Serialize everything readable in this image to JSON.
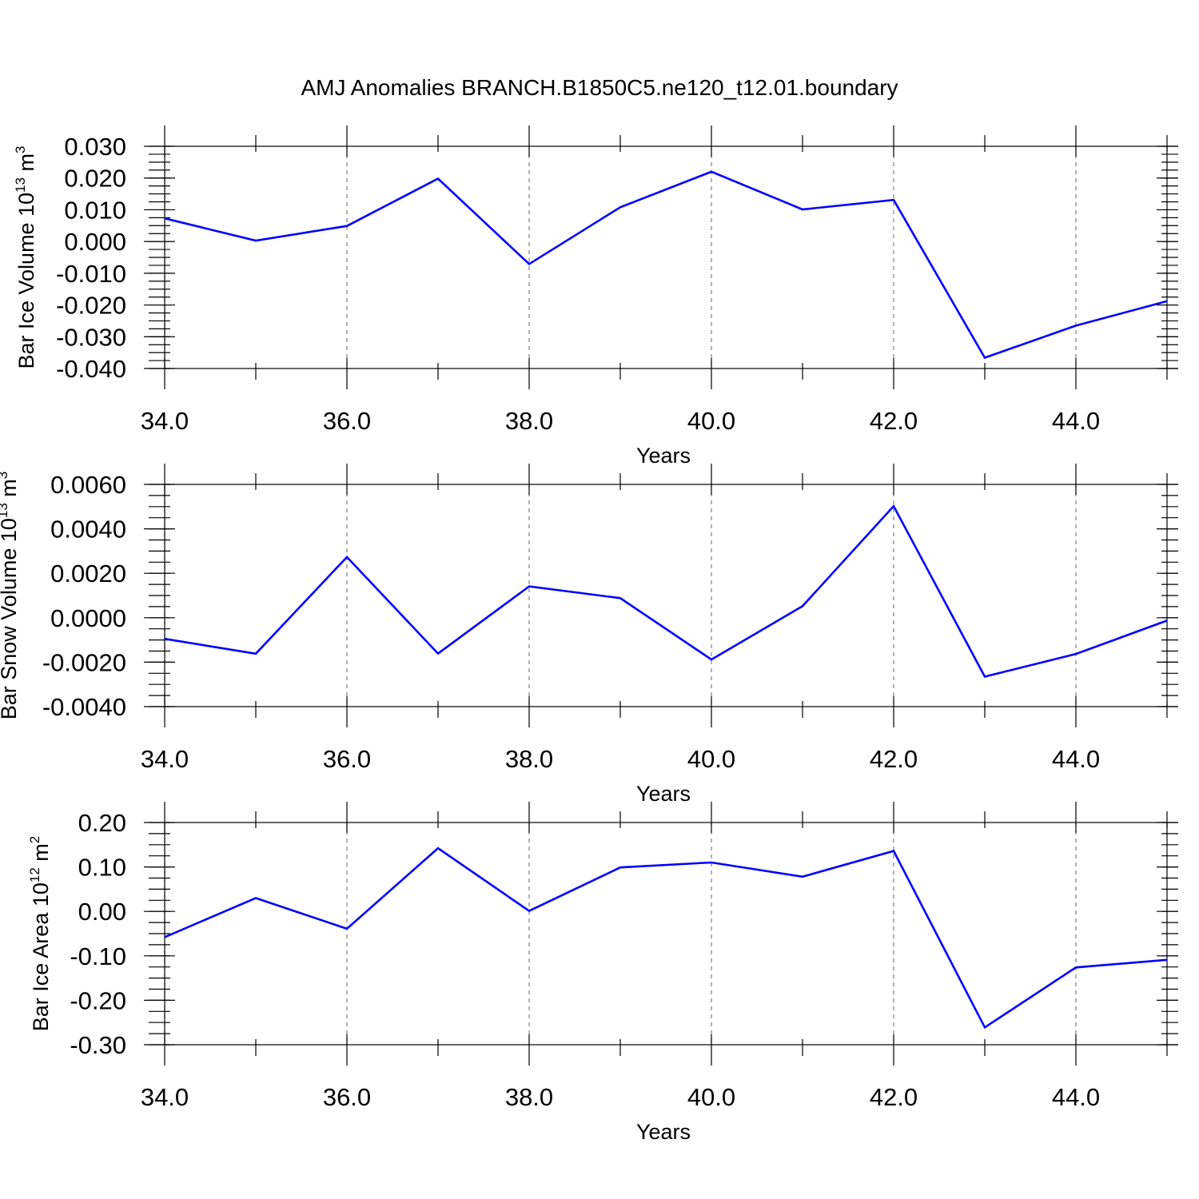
{
  "title": "AMJ Anomalies BRANCH.B1850C5.ne120_t12.01.boundary",
  "colors": {
    "series": "#0000ff",
    "grid": "#808080",
    "axis": "#000000"
  },
  "chart_data": [
    {
      "type": "line",
      "xlabel": "Years",
      "ylabel_main": "Bar Ice Volume 10",
      "ylabel_exp": "13",
      "ylabel_unit": " m",
      "ylabel_unit_exp": "3",
      "xlim": [
        34,
        45
      ],
      "ylim": [
        -0.04,
        0.03
      ],
      "grid": "vertical dashed at major x ticks",
      "x_ticks": [
        "34.0",
        "36.0",
        "38.0",
        "40.0",
        "42.0",
        "44.0"
      ],
      "y_ticks": [
        "0.030",
        "0.020",
        "0.010",
        "0.000",
        "-0.010",
        "-0.020",
        "-0.030",
        "-0.040"
      ],
      "series": [
        {
          "x": [
            34,
            35,
            36,
            37,
            38,
            39,
            40,
            41,
            42,
            43,
            44,
            45
          ],
          "values": [
            0.0073,
            0.0003,
            0.0049,
            0.0198,
            -0.0071,
            0.0108,
            0.022,
            0.0101,
            0.0131,
            -0.0366,
            -0.0265,
            -0.0188
          ]
        }
      ]
    },
    {
      "type": "line",
      "xlabel": "Years",
      "ylabel_main": "Bar Snow Volume 10",
      "ylabel_exp": "13",
      "ylabel_unit": " m",
      "ylabel_unit_exp": "3",
      "xlim": [
        34,
        45
      ],
      "ylim": [
        -0.004,
        0.006
      ],
      "grid": "vertical dashed at major x ticks",
      "x_ticks": [
        "34.0",
        "36.0",
        "38.0",
        "40.0",
        "42.0",
        "44.0"
      ],
      "y_ticks": [
        "0.0060",
        "0.0040",
        "0.0020",
        "0.0000",
        "-0.0020",
        "-0.0040"
      ],
      "series": [
        {
          "x": [
            34,
            35,
            36,
            37,
            38,
            39,
            40,
            41,
            42,
            43,
            44,
            45
          ],
          "values": [
            -0.00095,
            -0.00162,
            0.00273,
            -0.00161,
            0.00141,
            0.00088,
            -0.00188,
            0.00052,
            0.00502,
            -0.00265,
            -0.00163,
            -0.00013
          ]
        }
      ]
    },
    {
      "type": "line",
      "xlabel": "Years",
      "ylabel_main": "Bar Ice Area 10",
      "ylabel_exp": "12",
      "ylabel_unit": " m",
      "ylabel_unit_exp": "2",
      "xlim": [
        34,
        45
      ],
      "ylim": [
        -0.3,
        0.2
      ],
      "grid": "vertical dashed at major x ticks",
      "x_ticks": [
        "34.0",
        "36.0",
        "38.0",
        "40.0",
        "42.0",
        "44.0"
      ],
      "y_ticks": [
        "0.20",
        "0.10",
        "0.00",
        "-0.10",
        "-0.20",
        "-0.30"
      ],
      "series": [
        {
          "x": [
            34,
            35,
            36,
            37,
            38,
            39,
            40,
            41,
            42,
            43,
            44,
            45
          ],
          "values": [
            -0.058,
            0.03,
            -0.039,
            0.142,
            0.001,
            0.099,
            0.11,
            0.078,
            0.136,
            -0.261,
            -0.126,
            -0.109
          ]
        }
      ]
    }
  ]
}
